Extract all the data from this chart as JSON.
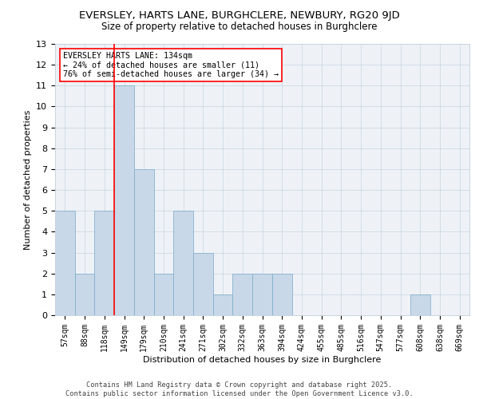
{
  "title1": "EVERSLEY, HARTS LANE, BURGHCLERE, NEWBURY, RG20 9JD",
  "title2": "Size of property relative to detached houses in Burghclere",
  "xlabel": "Distribution of detached houses by size in Burghclere",
  "ylabel": "Number of detached properties",
  "categories": [
    "57sqm",
    "88sqm",
    "118sqm",
    "149sqm",
    "179sqm",
    "210sqm",
    "241sqm",
    "271sqm",
    "302sqm",
    "332sqm",
    "363sqm",
    "394sqm",
    "424sqm",
    "455sqm",
    "485sqm",
    "516sqm",
    "547sqm",
    "577sqm",
    "608sqm",
    "638sqm",
    "669sqm"
  ],
  "values": [
    5,
    2,
    5,
    11,
    7,
    2,
    5,
    3,
    1,
    2,
    2,
    2,
    0,
    0,
    0,
    0,
    0,
    0,
    1,
    0,
    0
  ],
  "bar_color": "#c8d8e8",
  "bar_edge_color": "#7aa8c8",
  "red_line_x": 2.5,
  "annotation_line1": "EVERSLEY HARTS LANE: 134sqm",
  "annotation_line2": "← 24% of detached houses are smaller (11)",
  "annotation_line3": "76% of semi-detached houses are larger (34) →",
  "footer1": "Contains HM Land Registry data © Crown copyright and database right 2025.",
  "footer2": "Contains public sector information licensed under the Open Government Licence v3.0.",
  "bg_color": "#eef2f7",
  "grid_color": "#c8d4e0",
  "ylim": [
    0,
    13
  ],
  "yticks": [
    0,
    1,
    2,
    3,
    4,
    5,
    6,
    7,
    8,
    9,
    10,
    11,
    12,
    13
  ],
  "title1_fontsize": 9.5,
  "title2_fontsize": 8.5
}
